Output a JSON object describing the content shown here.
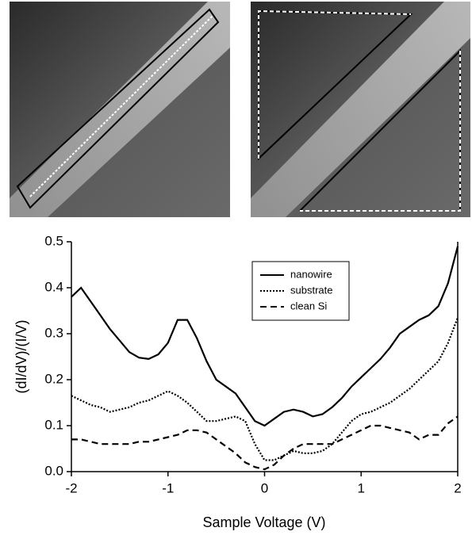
{
  "chart_data": {
    "type": "line",
    "x_label": "Sample Voltage (V)",
    "y_label": "(dI/dV)/(I/V)",
    "x": [
      -2,
      -1.9,
      -1.8,
      -1.7,
      -1.6,
      -1.5,
      -1.4,
      -1.3,
      -1.2,
      -1.1,
      -1,
      -0.9,
      -0.8,
      -0.7,
      -0.6,
      -0.5,
      -0.4,
      -0.3,
      -0.2,
      -0.1,
      0,
      0.1,
      0.2,
      0.3,
      0.4,
      0.5,
      0.6,
      0.7,
      0.8,
      0.9,
      1,
      1.1,
      1.2,
      1.3,
      1.4,
      1.5,
      1.6,
      1.7,
      1.8,
      1.9,
      2
    ],
    "series": [
      {
        "name": "nanowire",
        "color": "#000000",
        "dash": "solid",
        "values": [
          0.38,
          0.4,
          0.37,
          0.34,
          0.31,
          0.285,
          0.26,
          0.248,
          0.245,
          0.255,
          0.28,
          0.33,
          0.33,
          0.29,
          0.24,
          0.2,
          0.185,
          0.17,
          0.14,
          0.11,
          0.1,
          0.115,
          0.13,
          0.135,
          0.13,
          0.12,
          0.125,
          0.14,
          0.16,
          0.185,
          0.205,
          0.225,
          0.245,
          0.27,
          0.3,
          0.315,
          0.33,
          0.34,
          0.36,
          0.41,
          0.49
        ]
      },
      {
        "name": "substrate",
        "color": "#000000",
        "dash": "dotted",
        "values": [
          0.165,
          0.155,
          0.145,
          0.14,
          0.13,
          0.135,
          0.14,
          0.15,
          0.155,
          0.165,
          0.175,
          0.165,
          0.15,
          0.13,
          0.11,
          0.11,
          0.115,
          0.12,
          0.11,
          0.06,
          0.025,
          0.025,
          0.035,
          0.045,
          0.04,
          0.04,
          0.045,
          0.06,
          0.085,
          0.11,
          0.125,
          0.13,
          0.14,
          0.15,
          0.165,
          0.18,
          0.2,
          0.22,
          0.24,
          0.28,
          0.335
        ]
      },
      {
        "name": "clean Si",
        "color": "#000000",
        "dash": "dashed",
        "values": [
          0.07,
          0.07,
          0.065,
          0.06,
          0.06,
          0.06,
          0.06,
          0.065,
          0.065,
          0.07,
          0.075,
          0.08,
          0.09,
          0.09,
          0.085,
          0.07,
          0.055,
          0.04,
          0.02,
          0.01,
          0.005,
          0.015,
          0.035,
          0.05,
          0.06,
          0.06,
          0.06,
          0.06,
          0.07,
          0.08,
          0.09,
          0.1,
          0.1,
          0.095,
          0.09,
          0.085,
          0.07,
          0.08,
          0.08,
          0.105,
          0.12
        ]
      }
    ],
    "xlim": [
      -2,
      2
    ],
    "xticks": [
      -2,
      -1,
      0,
      1,
      2
    ],
    "ylim": [
      0,
      0.5
    ],
    "yticks": [
      {
        "value": 0,
        "label": "0.0"
      },
      0.1,
      0.2,
      0.3,
      0.4,
      0.5
    ],
    "grid": false
  }
}
